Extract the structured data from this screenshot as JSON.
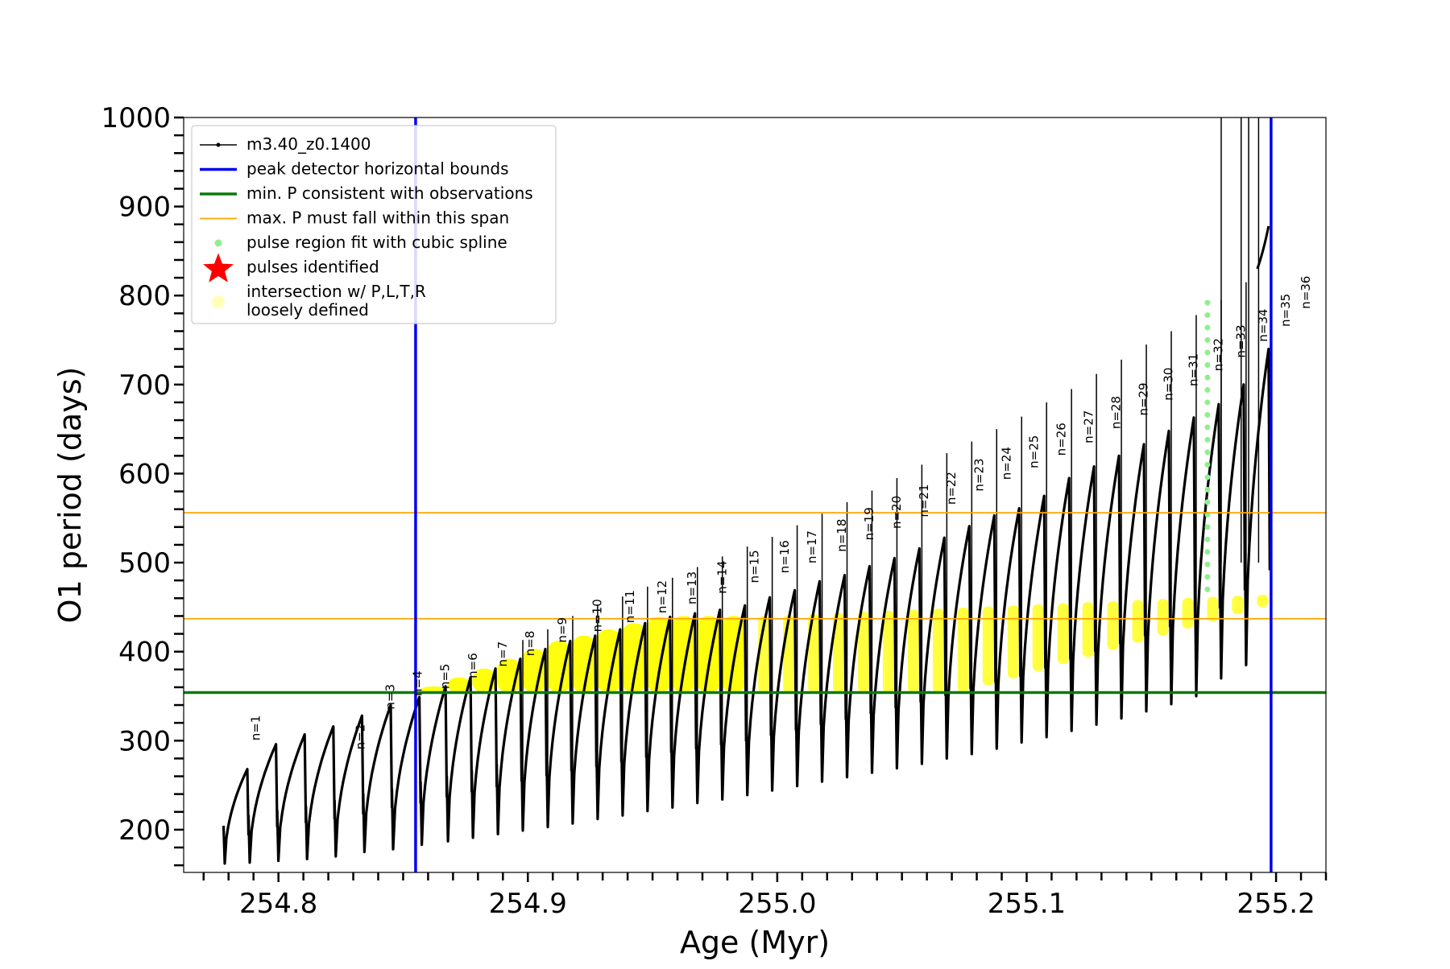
{
  "chart_data": {
    "type": "line",
    "title": "",
    "xlabel": "Age (Myr)",
    "ylabel": "O1 period (days)",
    "xlim": [
      254.762,
      255.22
    ],
    "ylim": [
      152,
      1000
    ],
    "x_ticks": [
      254.8,
      254.9,
      255.0,
      255.1,
      255.2
    ],
    "x_tick_labels": [
      "254.8",
      "254.9",
      "255.0",
      "255.1",
      "255.2"
    ],
    "y_ticks": [
      200,
      300,
      400,
      500,
      600,
      700,
      800,
      900,
      1000
    ],
    "y_tick_labels": [
      "200",
      "300",
      "400",
      "500",
      "600",
      "700",
      "800",
      "900",
      "1000"
    ],
    "grid": false,
    "legend_position": "upper-left",
    "legend": [
      {
        "label": "m3.40_z0.1400",
        "marker": "line-dot",
        "color": "#000000"
      },
      {
        "label": "peak detector horizontal bounds",
        "marker": "line",
        "color": "#0000ee"
      },
      {
        "label": "min. P consistent with observations",
        "marker": "line",
        "color": "#0a7a0a"
      },
      {
        "label": "max. P must fall within this span",
        "marker": "thin-line",
        "color": "#ffa500"
      },
      {
        "label": "pulse region fit with cubic spline",
        "marker": "dot",
        "color": "#90ee90"
      },
      {
        "label": "pulses identified",
        "marker": "star",
        "color": "#ff0000"
      },
      {
        "label": "intersection w/ P,L,T,R\nloosely defined",
        "marker": "circle",
        "color": "#ffffa0"
      }
    ],
    "vertical_lines": [
      {
        "name": "peak detector horizontal bounds (left)",
        "x": 254.855,
        "color": "#0000ee"
      },
      {
        "name": "peak detector horizontal bounds (right)",
        "x": 255.198,
        "color": "#0000ee"
      }
    ],
    "horizontal_lines": [
      {
        "name": "min. P consistent with observations",
        "y": 354,
        "color": "#0a7a0a"
      },
      {
        "name": "max. P must fall within this span (upper)",
        "y": 556,
        "color": "#ffa500"
      },
      {
        "name": "max. P must fall within this span (lower)",
        "y": 437,
        "color": "#ffa500"
      }
    ],
    "series_black_name": "m3.40_z0.1400",
    "pulses": [
      {
        "x_start": 254.778,
        "x_end": 254.788,
        "min": 162,
        "peak": 268
      },
      {
        "x_start": 254.788,
        "x_end": 254.7995,
        "min": 163,
        "peak": 296
      },
      {
        "x_start": 254.7995,
        "x_end": 254.811,
        "min": 165,
        "peak": 307
      },
      {
        "x_start": 254.811,
        "x_end": 254.8225,
        "min": 167,
        "peak": 316
      },
      {
        "x_start": 254.8225,
        "x_end": 254.834,
        "min": 170,
        "peak": 328
      },
      {
        "x_start": 254.834,
        "x_end": 254.8455,
        "min": 175,
        "peak": 340
      },
      {
        "x_start": 254.8455,
        "x_end": 254.857,
        "min": 178,
        "peak": 349
      },
      {
        "x_start": 254.857,
        "x_end": 254.8675,
        "min": 183,
        "peak": 361
      },
      {
        "x_start": 254.8675,
        "x_end": 254.8775,
        "min": 187,
        "peak": 371
      },
      {
        "x_start": 254.8775,
        "x_end": 254.8875,
        "min": 191,
        "peak": 381
      },
      {
        "x_start": 254.8875,
        "x_end": 254.8975,
        "min": 195,
        "peak": 392
      },
      {
        "x_start": 254.8975,
        "x_end": 254.9075,
        "min": 199,
        "peak": 403
      },
      {
        "x_start": 254.9075,
        "x_end": 254.9175,
        "min": 203,
        "peak": 412
      },
      {
        "x_start": 254.9175,
        "x_end": 254.9275,
        "min": 207,
        "peak": 418
      },
      {
        "x_start": 254.9275,
        "x_end": 254.9375,
        "min": 212,
        "peak": 425
      },
      {
        "x_start": 254.9375,
        "x_end": 254.9475,
        "min": 216,
        "peak": 432
      },
      {
        "x_start": 254.9475,
        "x_end": 254.9575,
        "min": 221,
        "peak": 439
      },
      {
        "x_start": 254.9575,
        "x_end": 254.9675,
        "min": 225,
        "peak": 443
      },
      {
        "x_start": 254.9675,
        "x_end": 254.9775,
        "min": 230,
        "peak": 447
      },
      {
        "x_start": 254.9775,
        "x_end": 254.9875,
        "min": 234,
        "peak": 452
      },
      {
        "x_start": 254.9875,
        "x_end": 254.9975,
        "min": 239,
        "peak": 461
      },
      {
        "x_start": 254.9975,
        "x_end": 255.0075,
        "min": 244,
        "peak": 469
      },
      {
        "x_start": 255.0075,
        "x_end": 255.0175,
        "min": 249,
        "peak": 479
      },
      {
        "x_start": 255.0175,
        "x_end": 255.0275,
        "min": 254,
        "peak": 486
      },
      {
        "x_start": 255.0275,
        "x_end": 255.0375,
        "min": 259,
        "peak": 496
      },
      {
        "x_start": 255.0375,
        "x_end": 255.0475,
        "min": 264,
        "peak": 505
      },
      {
        "x_start": 255.0475,
        "x_end": 255.0575,
        "min": 269,
        "peak": 516
      },
      {
        "x_start": 255.0575,
        "x_end": 255.0675,
        "min": 274,
        "peak": 528
      },
      {
        "x_start": 255.0675,
        "x_end": 255.0775,
        "min": 280,
        "peak": 541
      },
      {
        "x_start": 255.0775,
        "x_end": 255.0875,
        "min": 285,
        "peak": 553
      },
      {
        "x_start": 255.0875,
        "x_end": 255.0975,
        "min": 291,
        "peak": 561
      },
      {
        "x_start": 255.0975,
        "x_end": 255.1075,
        "min": 298,
        "peak": 575
      },
      {
        "x_start": 255.1075,
        "x_end": 255.1175,
        "min": 304,
        "peak": 595
      },
      {
        "x_start": 255.1175,
        "x_end": 255.1275,
        "min": 311,
        "peak": 608
      },
      {
        "x_start": 255.1275,
        "x_end": 255.1375,
        "min": 318,
        "peak": 620
      },
      {
        "x_start": 255.1375,
        "x_end": 255.1475,
        "min": 325,
        "peak": 633
      },
      {
        "x_start": 255.1475,
        "x_end": 255.1575,
        "min": 333,
        "peak": 648
      },
      {
        "x_start": 255.1575,
        "x_end": 255.1675,
        "min": 341,
        "peak": 663
      },
      {
        "x_start": 255.1675,
        "x_end": 255.1775,
        "min": 350,
        "peak": 678
      },
      {
        "x_start": 255.1775,
        "x_end": 255.1875,
        "min": 370,
        "peak": 700
      },
      {
        "x_start": 255.1875,
        "x_end": 255.1975,
        "min": 385,
        "peak": 740
      }
    ],
    "pulse_labels": [
      {
        "text": "n=1",
        "x": 254.7925,
        "y": 300
      },
      {
        "text": "n=2",
        "x": 254.8345,
        "y": 290
      },
      {
        "text": "n=3",
        "x": 254.8465,
        "y": 335
      },
      {
        "text": "n=4",
        "x": 254.8575,
        "y": 350
      },
      {
        "text": "n=5",
        "x": 254.8685,
        "y": 358
      },
      {
        "text": "n=6",
        "x": 254.8795,
        "y": 370
      },
      {
        "text": "n=7",
        "x": 254.8915,
        "y": 383
      },
      {
        "text": "n=8",
        "x": 254.9025,
        "y": 395
      },
      {
        "text": "n=9",
        "x": 254.9155,
        "y": 410
      },
      {
        "text": "n=10",
        "x": 254.9295,
        "y": 422
      },
      {
        "text": "n=11",
        "x": 254.9425,
        "y": 432
      },
      {
        "text": "n=12",
        "x": 254.9555,
        "y": 443
      },
      {
        "text": "n=13",
        "x": 254.9675,
        "y": 453
      },
      {
        "text": "n=14",
        "x": 254.9795,
        "y": 465
      },
      {
        "text": "n=15",
        "x": 254.9925,
        "y": 477
      },
      {
        "text": "n=16",
        "x": 255.0045,
        "y": 488
      },
      {
        "text": "n=17",
        "x": 255.0155,
        "y": 499
      },
      {
        "text": "n=18",
        "x": 255.0275,
        "y": 512
      },
      {
        "text": "n=19",
        "x": 255.0385,
        "y": 525
      },
      {
        "text": "n=20",
        "x": 255.0495,
        "y": 538
      },
      {
        "text": "n=21",
        "x": 255.0605,
        "y": 551
      },
      {
        "text": "n=22",
        "x": 255.0715,
        "y": 565
      },
      {
        "text": "n=23",
        "x": 255.0825,
        "y": 580
      },
      {
        "text": "n=24",
        "x": 255.0935,
        "y": 593
      },
      {
        "text": "n=25",
        "x": 255.1045,
        "y": 606
      },
      {
        "text": "n=26",
        "x": 255.1155,
        "y": 620
      },
      {
        "text": "n=27",
        "x": 255.1265,
        "y": 634
      },
      {
        "text": "n=28",
        "x": 255.1375,
        "y": 650
      },
      {
        "text": "n=29",
        "x": 255.1485,
        "y": 665
      },
      {
        "text": "n=30",
        "x": 255.1585,
        "y": 682
      },
      {
        "text": "n=31",
        "x": 255.1685,
        "y": 698
      },
      {
        "text": "n=32",
        "x": 255.1785,
        "y": 715
      },
      {
        "text": "n=33",
        "x": 255.1875,
        "y": 730
      },
      {
        "text": "n=34",
        "x": 255.1965,
        "y": 748
      },
      {
        "text": "n=35",
        "x": 255.2055,
        "y": 765
      },
      {
        "text": "n=36",
        "x": 255.2135,
        "y": 785
      }
    ],
    "spline_points": {
      "x": 255.1725,
      "y_min": 470,
      "y_max": 798
    },
    "yellow_intersection_band": {
      "y_lower": 354,
      "y_upper": 440
    }
  }
}
